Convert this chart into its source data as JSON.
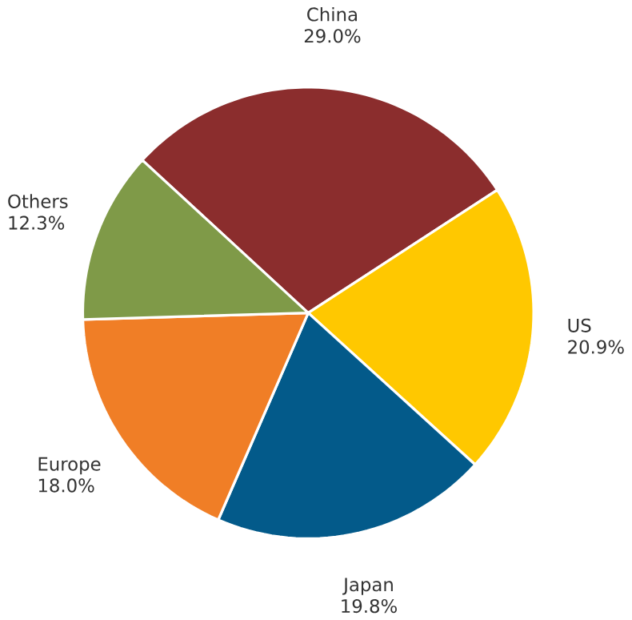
{
  "chart_data": {
    "type": "pie",
    "categories": [
      "China",
      "US",
      "Japan",
      "Europe",
      "Others"
    ],
    "values": [
      29.0,
      20.9,
      19.8,
      18.0,
      12.3
    ],
    "value_labels": [
      "29.0%",
      "20.9%",
      "19.8%",
      "18.0%",
      "12.3%"
    ],
    "colors": [
      "#8b2d2d",
      "#ffc800",
      "#035a8a",
      "#f07e26",
      "#7f9a48"
    ]
  }
}
